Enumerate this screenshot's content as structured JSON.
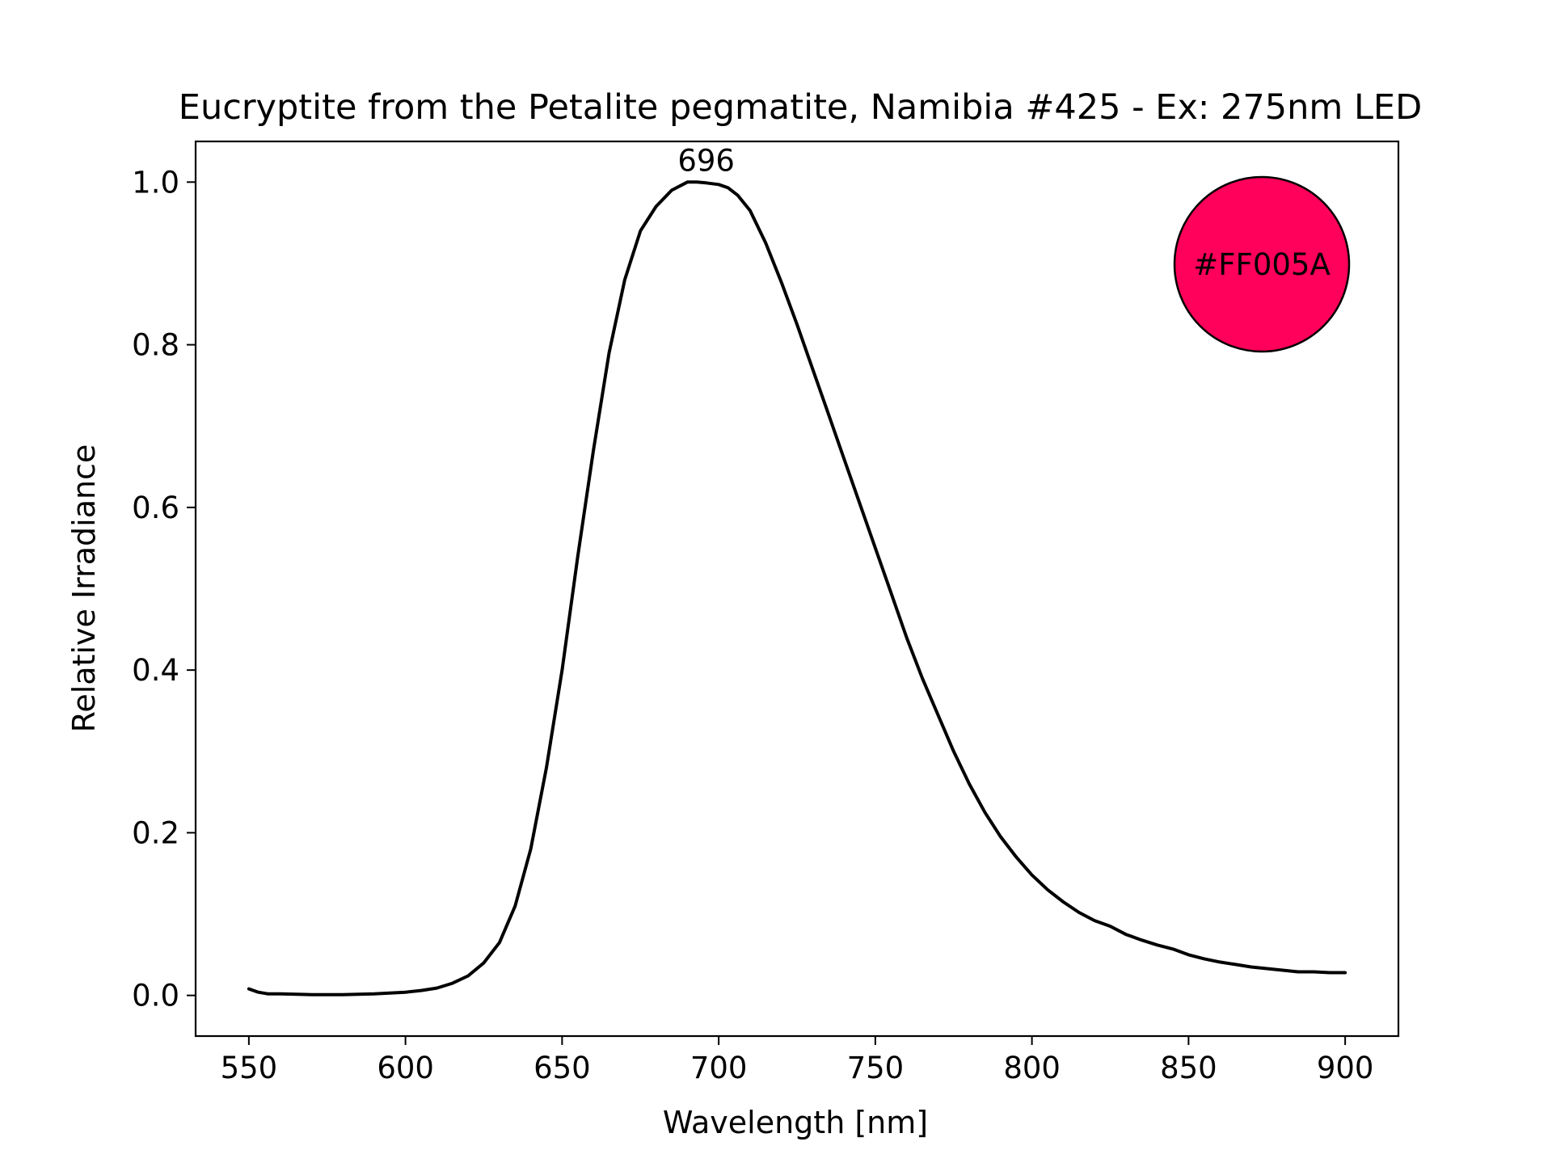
{
  "chart_data": {
    "type": "line",
    "title": "Eucryptite from the Petalite pegmatite, Namibia #425 - Ex: 275nm LED",
    "xlabel": "Wavelength [nm]",
    "ylabel": "Relative Irradiance",
    "xlim": [
      533,
      917
    ],
    "ylim": [
      -0.05,
      1.05
    ],
    "xticks": [
      550,
      600,
      650,
      700,
      750,
      800,
      850,
      900
    ],
    "yticks": [
      0.0,
      0.2,
      0.4,
      0.6,
      0.8,
      1.0
    ],
    "xtick_labels": [
      "550",
      "600",
      "650",
      "700",
      "750",
      "800",
      "850",
      "900"
    ],
    "ytick_labels": [
      "0.0",
      "0.2",
      "0.4",
      "0.6",
      "0.8",
      "1.0"
    ],
    "grid": false,
    "series": [
      {
        "color": "#000000",
        "x": [
          550,
          553,
          556,
          560,
          570,
          580,
          590,
          600,
          605,
          610,
          615,
          620,
          625,
          630,
          635,
          640,
          645,
          650,
          655,
          660,
          665,
          670,
          675,
          680,
          685,
          690,
          693,
          696,
          700,
          703,
          706,
          710,
          715,
          720,
          725,
          730,
          735,
          740,
          745,
          750,
          755,
          760,
          765,
          770,
          775,
          780,
          785,
          790,
          795,
          800,
          805,
          810,
          815,
          820,
          825,
          830,
          835,
          840,
          845,
          850,
          855,
          860,
          865,
          870,
          875,
          880,
          885,
          890,
          895,
          900
        ],
        "y": [
          0.008,
          0.004,
          0.002,
          0.002,
          0.001,
          0.001,
          0.002,
          0.004,
          0.006,
          0.009,
          0.015,
          0.024,
          0.04,
          0.065,
          0.11,
          0.18,
          0.28,
          0.4,
          0.54,
          0.67,
          0.79,
          0.88,
          0.94,
          0.97,
          0.99,
          1.0,
          1.0,
          0.999,
          0.997,
          0.993,
          0.984,
          0.965,
          0.925,
          0.877,
          0.825,
          0.77,
          0.715,
          0.66,
          0.605,
          0.55,
          0.495,
          0.44,
          0.39,
          0.345,
          0.3,
          0.26,
          0.225,
          0.195,
          0.17,
          0.148,
          0.13,
          0.115,
          0.102,
          0.092,
          0.085,
          0.075,
          0.068,
          0.062,
          0.057,
          0.05,
          0.045,
          0.041,
          0.038,
          0.035,
          0.033,
          0.031,
          0.029,
          0.029,
          0.028,
          0.028
        ]
      }
    ],
    "annotations": [
      {
        "text": "696",
        "x": 696,
        "y": 1.0
      }
    ],
    "color_swatch": {
      "label": "#FF005A",
      "color": "#FF005A"
    }
  }
}
